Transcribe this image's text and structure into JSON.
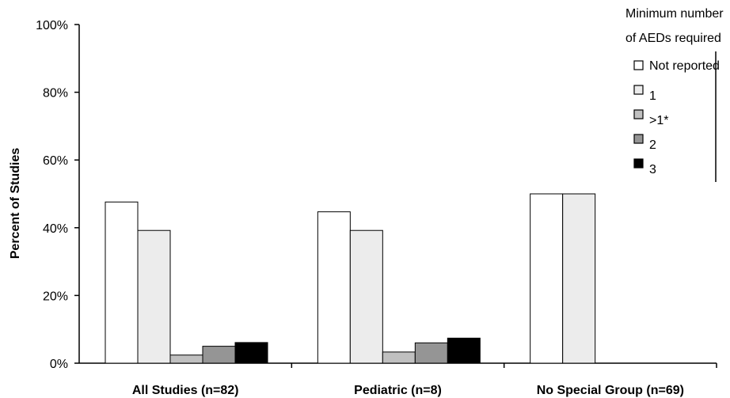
{
  "chart_data": {
    "type": "bar",
    "title": "",
    "xlabel": "",
    "ylabel": "Percent of Studies",
    "ylim": [
      0,
      100
    ],
    "yticks": [
      "0%",
      "20%",
      "40%",
      "60%",
      "80%",
      "100%"
    ],
    "grid": false,
    "legend_position": "top-right",
    "categories": [
      "All Studies (n=82)",
      "Pediatric (n=8)",
      "No Special Group (n=69)"
    ],
    "legend_title": "Minimum number of AEDs required",
    "series": [
      {
        "name": "Not reported",
        "color": "#ffffff",
        "values": [
          47.6,
          44.7,
          50.0
        ]
      },
      {
        "name": "1",
        "color": "#ececec",
        "values": [
          39.2,
          39.2,
          50.0
        ]
      },
      {
        "name": ">1*",
        "color": "#c0c0c0",
        "values": [
          2.4,
          3.3,
          0
        ]
      },
      {
        "name": "2",
        "color": "#959595",
        "values": [
          5.0,
          6.0,
          0
        ]
      },
      {
        "name": "3",
        "color": "#000000",
        "values": [
          6.1,
          7.4,
          0
        ]
      }
    ]
  }
}
